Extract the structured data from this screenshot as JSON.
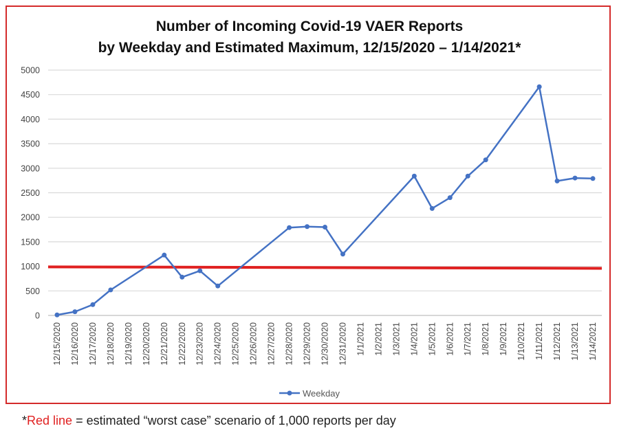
{
  "chart_data": {
    "type": "line",
    "title_lines": [
      "Number of Incoming Covid-19 VAER Reports",
      "by Weekday and Estimated Maximum, 12/15/2020 – 1/14/2021*"
    ],
    "categories": [
      "12/15/2020",
      "12/16/2020",
      "12/17/2020",
      "12/18/2020",
      "12/19/2020",
      "12/20/2020",
      "12/21/2020",
      "12/22/2020",
      "12/23/2020",
      "12/24/2020",
      "12/25/2020",
      "12/26/2020",
      "12/27/2020",
      "12/28/2020",
      "12/29/2020",
      "12/30/2020",
      "12/31/2020",
      "1/1/2021",
      "1/2/2021",
      "1/3/2021",
      "1/4/2021",
      "1/5/2021",
      "1/6/2021",
      "1/7/2021",
      "1/8/2021",
      "1/9/2021",
      "1/10/2021",
      "1/11/2021",
      "1/12/2021",
      "1/13/2021",
      "1/14/2021"
    ],
    "series": [
      {
        "name": "Weekday",
        "color": "#4472c4",
        "points": [
          {
            "x": "12/15/2020",
            "y": 10
          },
          {
            "x": "12/16/2020",
            "y": 75
          },
          {
            "x": "12/17/2020",
            "y": 220
          },
          {
            "x": "12/18/2020",
            "y": 520
          },
          {
            "x": "12/21/2020",
            "y": 1230
          },
          {
            "x": "12/22/2020",
            "y": 780
          },
          {
            "x": "12/23/2020",
            "y": 910
          },
          {
            "x": "12/24/2020",
            "y": 600
          },
          {
            "x": "12/28/2020",
            "y": 1790
          },
          {
            "x": "12/29/2020",
            "y": 1810
          },
          {
            "x": "12/30/2020",
            "y": 1800
          },
          {
            "x": "12/31/2020",
            "y": 1250
          },
          {
            "x": "1/4/2021",
            "y": 2840
          },
          {
            "x": "1/5/2021",
            "y": 2180
          },
          {
            "x": "1/6/2021",
            "y": 2400
          },
          {
            "x": "1/7/2021",
            "y": 2840
          },
          {
            "x": "1/8/2021",
            "y": 3170
          },
          {
            "x": "1/11/2021",
            "y": 4660
          },
          {
            "x": "1/12/2021",
            "y": 2740
          },
          {
            "x": "1/13/2021",
            "y": 2800
          },
          {
            "x": "1/14/2021",
            "y": 2790
          }
        ]
      }
    ],
    "reference_line": {
      "y_start": 990,
      "y_end": 960,
      "color": "#e02020"
    },
    "yticks": [
      "0",
      "500",
      "1000",
      "1500",
      "2000",
      "2500",
      "3000",
      "3500",
      "4000",
      "4500",
      "5000"
    ],
    "ylim": [
      0,
      5000
    ],
    "grid": true,
    "legend": "bottom-center",
    "frame_color": "#d42a2a"
  },
  "footnote": {
    "star": "*",
    "red_part": "Red line",
    "rest": " = estimated “worst case” scenario of 1,000 reports per day"
  }
}
